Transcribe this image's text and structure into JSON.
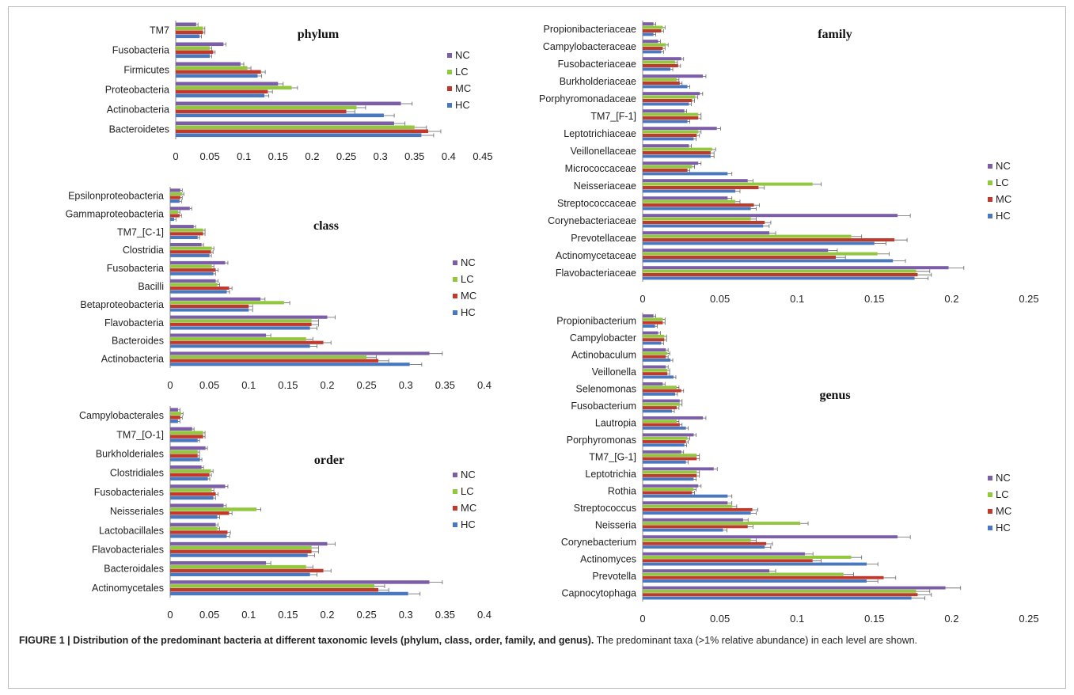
{
  "caption": {
    "bold": "FIGURE 1 | Distribution of the predominant bacteria at different taxonomic levels (phylum, class, order, family, and genus).",
    "rest": " The predominant taxa (>1% relative abundance) in each level are shown."
  },
  "colors": {
    "NC": "#7b5ea7",
    "LC": "#92c83e",
    "MC": "#c0392b",
    "HC": "#4a78bf"
  },
  "chart_data": [
    {
      "type": "bar",
      "orientation": "horizontal",
      "title": "phylum",
      "legend": [
        "NC",
        "LC",
        "MC",
        "HC"
      ],
      "legend_position": "right",
      "xlim": [
        0,
        0.45
      ],
      "xticks": [
        "0",
        "0.05",
        "0.1",
        "0.15",
        "0.2",
        "0.25",
        "0.3",
        "0.35",
        "0.4",
        "0.45"
      ],
      "categories": [
        "TM7",
        "Fusobacteria",
        "Firmicutes",
        "Proteobacteria",
        "Actinobacteria",
        "Bacteroidetes"
      ],
      "series": [
        {
          "name": "NC",
          "values": [
            0.03,
            0.07,
            0.095,
            0.15,
            0.33,
            0.32
          ]
        },
        {
          "name": "LC",
          "values": [
            0.04,
            0.05,
            0.105,
            0.17,
            0.265,
            0.35
          ]
        },
        {
          "name": "MC",
          "values": [
            0.04,
            0.055,
            0.125,
            0.135,
            0.25,
            0.37
          ]
        },
        {
          "name": "HC",
          "values": [
            0.035,
            0.05,
            0.12,
            0.13,
            0.305,
            0.36
          ]
        }
      ]
    },
    {
      "type": "bar",
      "orientation": "horizontal",
      "title": "class",
      "legend": [
        "NC",
        "LC",
        "MC",
        "HC"
      ],
      "legend_position": "right",
      "xlim": [
        0,
        0.4
      ],
      "xticks": [
        "0",
        "0.05",
        "0.1",
        "0.15",
        "0.2",
        "0.25",
        "0.3",
        "0.35",
        "0.4"
      ],
      "categories": [
        "Epsilonproteobacteria",
        "Gammaproteobacteria",
        "TM7_[C-1]",
        "Clostridia",
        "Fusobacteria",
        "Bacilli",
        "Betaproteobacteria",
        "Flavobacteria",
        "Bacteroides",
        "Actinobacteria"
      ],
      "series": [
        {
          "name": "NC",
          "values": [
            0.013,
            0.025,
            0.03,
            0.04,
            0.07,
            0.058,
            0.115,
            0.2,
            0.122,
            0.33
          ]
        },
        {
          "name": "LC",
          "values": [
            0.015,
            0.01,
            0.042,
            0.053,
            0.053,
            0.06,
            0.145,
            0.18,
            0.173,
            0.25
          ]
        },
        {
          "name": "MC",
          "values": [
            0.013,
            0.012,
            0.042,
            0.052,
            0.058,
            0.075,
            0.1,
            0.18,
            0.195,
            0.265
          ]
        },
        {
          "name": "HC",
          "values": [
            0.012,
            0.005,
            0.035,
            0.05,
            0.055,
            0.072,
            0.1,
            0.178,
            0.178,
            0.305
          ]
        }
      ]
    },
    {
      "type": "bar",
      "orientation": "horizontal",
      "title": "order",
      "legend": [
        "NC",
        "LC",
        "MC",
        "HC"
      ],
      "legend_position": "right",
      "xlim": [
        0,
        0.4
      ],
      "xticks": [
        "0",
        "0.05",
        "0.1",
        "0.15",
        "0.2",
        "0.25",
        "0.3",
        "0.35",
        "0.4"
      ],
      "categories": [
        "Campylobacterales",
        "TM7_[O-1]",
        "Burkholderiales",
        "Clostridiales",
        "Fusobacteriales",
        "Neisseriales",
        "Lactobacillales",
        "Flavobacteriales",
        "Bacteroidales",
        "Actinomycetales"
      ],
      "series": [
        {
          "name": "NC",
          "values": [
            0.01,
            0.028,
            0.045,
            0.04,
            0.07,
            0.068,
            0.058,
            0.2,
            0.122,
            0.33
          ]
        },
        {
          "name": "LC",
          "values": [
            0.014,
            0.042,
            0.035,
            0.052,
            0.053,
            0.11,
            0.06,
            0.18,
            0.173,
            0.26
          ]
        },
        {
          "name": "MC",
          "values": [
            0.013,
            0.042,
            0.035,
            0.05,
            0.058,
            0.075,
            0.073,
            0.18,
            0.195,
            0.265
          ]
        },
        {
          "name": "HC",
          "values": [
            0.01,
            0.035,
            0.038,
            0.048,
            0.055,
            0.06,
            0.072,
            0.175,
            0.178,
            0.303
          ]
        }
      ]
    },
    {
      "type": "bar",
      "orientation": "horizontal",
      "title": "family",
      "legend": [
        "NC",
        "LC",
        "MC",
        "HC"
      ],
      "legend_position": "right",
      "xlim": [
        0,
        0.25
      ],
      "xticks": [
        "0",
        "0.05",
        "0.1",
        "0.15",
        "0.2",
        "0.25"
      ],
      "categories": [
        "Propionibacteriaceae",
        "Campylobacteraceae",
        "Fusobacteriaceae",
        "Burkholderiaceae",
        "Porphyromonadaceae",
        "TM7_[F-1]",
        "Leptotrichiaceae",
        "Veillonellaceae",
        "Micrococcaceae",
        "Neisseriaceae",
        "Streptococcaceae",
        "Corynebacteriaceae",
        "Prevotellaceae",
        "Actinomycetaceae",
        "Flavobacteriaceae"
      ],
      "series": [
        {
          "name": "NC",
          "values": [
            0.007,
            0.01,
            0.025,
            0.039,
            0.037,
            0.027,
            0.048,
            0.03,
            0.036,
            0.068,
            0.055,
            0.165,
            0.082,
            0.12,
            0.198
          ]
        },
        {
          "name": "LC",
          "values": [
            0.013,
            0.015,
            0.021,
            0.022,
            0.034,
            0.036,
            0.036,
            0.045,
            0.032,
            0.11,
            0.06,
            0.07,
            0.135,
            0.152,
            0.177
          ]
        },
        {
          "name": "MC",
          "values": [
            0.012,
            0.013,
            0.023,
            0.024,
            0.032,
            0.036,
            0.035,
            0.044,
            0.029,
            0.075,
            0.072,
            0.079,
            0.163,
            0.125,
            0.178
          ]
        },
        {
          "name": "HC",
          "values": [
            0.007,
            0.012,
            0.018,
            0.029,
            0.03,
            0.029,
            0.033,
            0.044,
            0.055,
            0.06,
            0.07,
            0.078,
            0.15,
            0.162,
            0.176
          ]
        }
      ]
    },
    {
      "type": "bar",
      "orientation": "horizontal",
      "title": "genus",
      "legend": [
        "NC",
        "LC",
        "MC",
        "HC"
      ],
      "legend_position": "right",
      "xlim": [
        0,
        0.25
      ],
      "xticks": [
        "0",
        "0.05",
        "0.1",
        "0.15",
        "0.2",
        "0.25"
      ],
      "categories": [
        "Propionibacterium",
        "Campylobacter",
        "Actinobaculum",
        "Veillonella",
        "Selenomonas",
        "Fusobacterium",
        "Lautropia",
        "Porphyromonas",
        "TM7_[G-1]",
        "Leptotrichia",
        "Rothia",
        "Streptococcus",
        "Neisseria",
        "Corynebacterium",
        "Actinomyces",
        "Prevotella",
        "Capnocytophaga"
      ],
      "series": [
        {
          "name": "NC",
          "values": [
            0.007,
            0.01,
            0.015,
            0.015,
            0.013,
            0.024,
            0.039,
            0.033,
            0.025,
            0.046,
            0.036,
            0.055,
            0.065,
            0.165,
            0.105,
            0.082,
            0.196
          ]
        },
        {
          "name": "LC",
          "values": [
            0.013,
            0.014,
            0.016,
            0.016,
            0.022,
            0.024,
            0.022,
            0.029,
            0.035,
            0.035,
            0.033,
            0.058,
            0.102,
            0.07,
            0.135,
            0.13,
            0.177
          ]
        },
        {
          "name": "MC",
          "values": [
            0.013,
            0.014,
            0.015,
            0.016,
            0.025,
            0.022,
            0.024,
            0.028,
            0.035,
            0.035,
            0.032,
            0.071,
            0.068,
            0.08,
            0.11,
            0.156,
            0.178
          ]
        },
        {
          "name": "HC",
          "values": [
            0.008,
            0.012,
            0.018,
            0.02,
            0.021,
            0.019,
            0.028,
            0.027,
            0.028,
            0.033,
            0.055,
            0.07,
            0.052,
            0.079,
            0.145,
            0.145,
            0.174
          ]
        }
      ]
    }
  ]
}
